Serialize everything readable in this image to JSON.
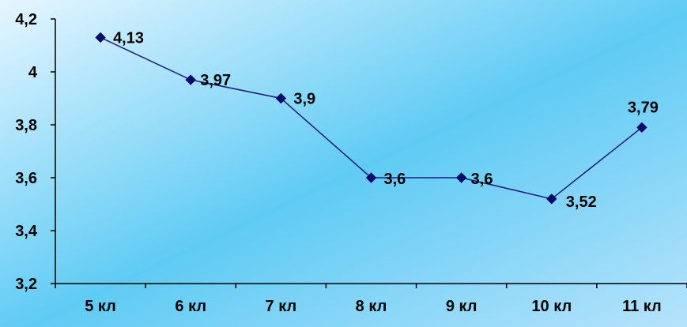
{
  "chart_data": {
    "type": "line",
    "categories": [
      "5 кл",
      "6 кл",
      "7 кл",
      "8 кл",
      "9 кл",
      "10 кл",
      "11 кл"
    ],
    "series": [
      {
        "values": [
          4.13,
          3.97,
          3.9,
          3.6,
          3.6,
          3.52,
          3.79
        ],
        "labels": [
          "4,13",
          "3,97",
          "3,9",
          "3,6",
          "3,6",
          "3,52",
          "3,79"
        ]
      }
    ],
    "yticks": [
      3.2,
      3.4,
      3.6,
      3.8,
      4.0,
      4.2
    ],
    "ytick_labels": [
      "3,2",
      "3,4",
      "3,6",
      "3,8",
      "4",
      "4,2"
    ],
    "ylim": [
      3.2,
      4.2
    ],
    "grid": false,
    "legend": "none",
    "title": "",
    "xlabel": "",
    "ylabel": ""
  },
  "colors": {
    "line": "#1c1c7a",
    "marker": "#0a0a6b",
    "axis": "#000000",
    "bg_light": "#e6f6ff",
    "bg_mid": "#5fcbf4",
    "bg_edge": "#b6e3fb"
  },
  "marker_shape": "diamond"
}
